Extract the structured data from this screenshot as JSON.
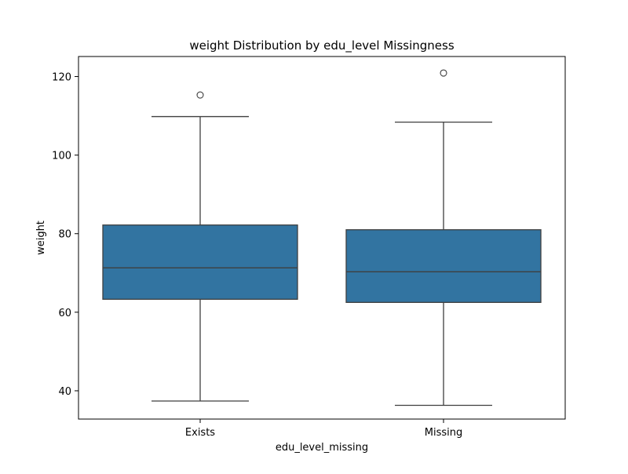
{
  "chart_data": {
    "type": "box",
    "title": "weight Distribution by edu_level Missingness",
    "xlabel": "edu_level_missing",
    "ylabel": "weight",
    "categories": [
      "Exists",
      "Missing"
    ],
    "ylim": [
      32.8,
      125.1
    ],
    "yticks": [
      40,
      60,
      80,
      100,
      120
    ],
    "grid": false,
    "legend": "none",
    "boxes": [
      {
        "category": "Exists",
        "whisker_low": 37.4,
        "q1": 63.3,
        "median": 71.3,
        "q3": 82.2,
        "whisker_high": 109.8,
        "outliers": [
          115.3
        ]
      },
      {
        "category": "Missing",
        "whisker_low": 36.3,
        "q1": 62.5,
        "median": 70.3,
        "q3": 81.0,
        "whisker_high": 108.4,
        "outliers": [
          120.9
        ]
      }
    ],
    "colors": {
      "box_fill": "#3274a1",
      "box_edge": "#3f3f3f",
      "axis": "#000000"
    }
  }
}
